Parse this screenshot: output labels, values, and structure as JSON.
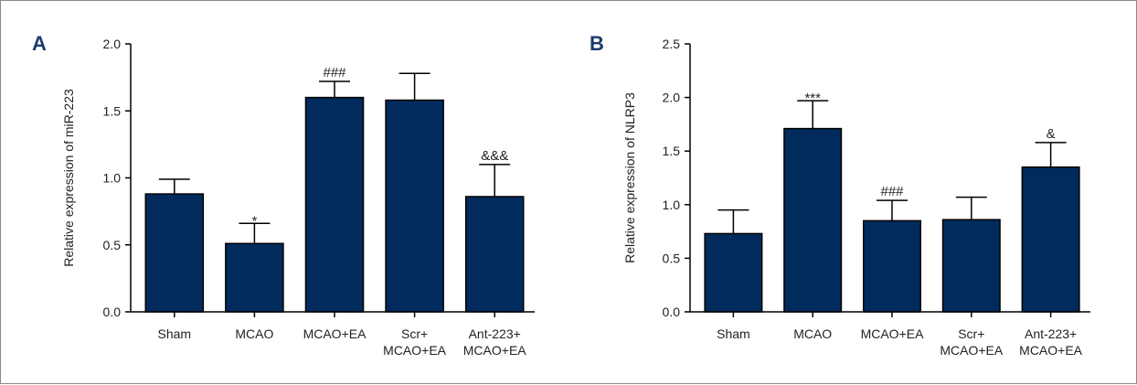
{
  "figure": {
    "bar_color": "#002b5c",
    "axis_color": "#000000",
    "letter_color": "#1a3a6e"
  },
  "chart_data": [
    {
      "panel": "A",
      "type": "bar",
      "title": "",
      "xlabel": "",
      "ylabel": "Relative expression of miR-223",
      "ylim": [
        0,
        2.0
      ],
      "yticks": [
        0.0,
        0.5,
        1.0,
        1.5,
        2.0
      ],
      "ytick_labels": [
        "0.0",
        "0.5",
        "1.0",
        "1.5",
        "2.0"
      ],
      "grid": false,
      "categories": [
        [
          "Sham"
        ],
        [
          "MCAO"
        ],
        [
          "MCAO+EA"
        ],
        [
          "Scr+",
          "MCAO+EA"
        ],
        [
          "Ant-223+",
          "MCAO+EA"
        ]
      ],
      "values": [
        0.88,
        0.51,
        1.6,
        1.58,
        0.86
      ],
      "errors": [
        0.11,
        0.15,
        0.12,
        0.2,
        0.24
      ],
      "annotations": [
        "",
        "*",
        "###",
        "",
        "&&&"
      ]
    },
    {
      "panel": "B",
      "type": "bar",
      "title": "",
      "xlabel": "",
      "ylabel": "Relative expression of NLRP3",
      "ylim": [
        0,
        2.5
      ],
      "yticks": [
        0.0,
        0.5,
        1.0,
        1.5,
        2.0,
        2.5
      ],
      "ytick_labels": [
        "0.0",
        "0.5",
        "1.0",
        "1.5",
        "2.0",
        "2.5"
      ],
      "grid": false,
      "categories": [
        [
          "Sham"
        ],
        [
          "MCAO"
        ],
        [
          "MCAO+EA"
        ],
        [
          "Scr+",
          "MCAO+EA"
        ],
        [
          "Ant-223+",
          "MCAO+EA"
        ]
      ],
      "values": [
        0.73,
        1.71,
        0.85,
        0.86,
        1.35
      ],
      "errors": [
        0.22,
        0.26,
        0.19,
        0.21,
        0.23
      ],
      "annotations": [
        "",
        "***",
        "###",
        "",
        "&"
      ]
    }
  ]
}
